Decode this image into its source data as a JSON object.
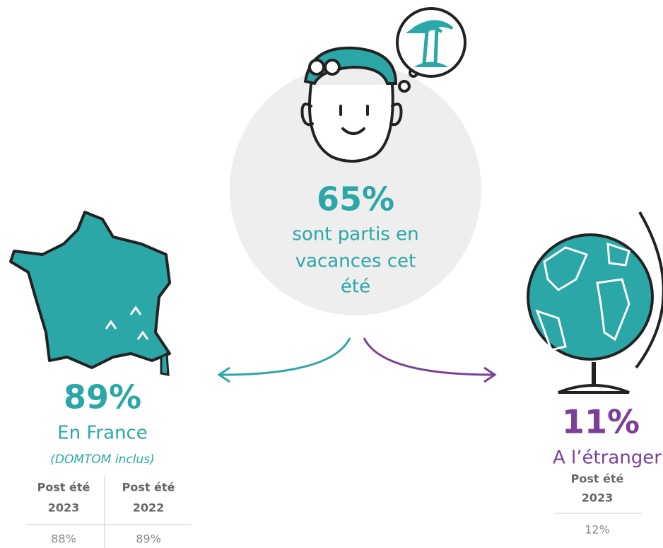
{
  "center": {
    "value": "65%",
    "lines": [
      "sont partis en",
      "vacances cet",
      "été"
    ]
  },
  "france": {
    "value": "89%",
    "label": "En France",
    "note": "(DOMTOM inclus)",
    "table": {
      "headers": [
        [
          "Post été",
          "2023"
        ],
        [
          "Post été",
          "2022"
        ]
      ],
      "rows": [
        [
          "88%",
          "89%"
        ]
      ]
    }
  },
  "abroad": {
    "value": "11%",
    "label": "A l’étranger",
    "table": {
      "headers": [
        [
          "Post été",
          "2023"
        ]
      ],
      "rows": [
        [
          "12%"
        ]
      ]
    }
  }
}
